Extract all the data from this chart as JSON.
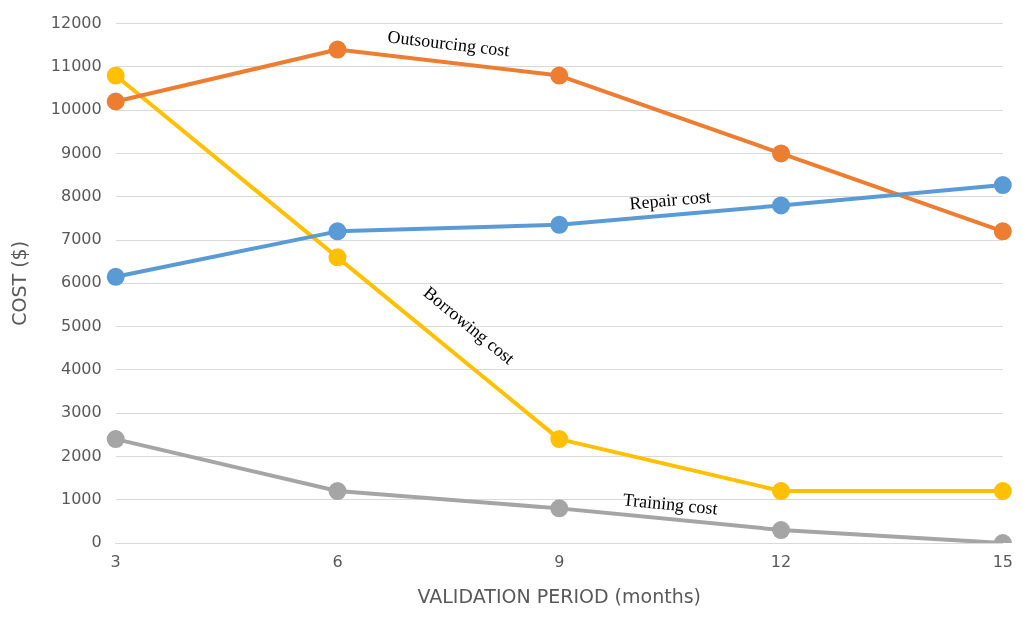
{
  "chart_data": {
    "type": "line",
    "xlabel": "VALIDATION PERIOD (months)",
    "ylabel": "COST ($)",
    "categories": [
      "3",
      "6",
      "9",
      "12",
      "15"
    ],
    "series": [
      {
        "name": "Repair cost",
        "color": "#5b9bd5",
        "values": [
          6150,
          7200,
          7350,
          7800,
          8270
        ]
      },
      {
        "name": "Outsourcing cost",
        "color": "#ed7d31",
        "values": [
          10200,
          11400,
          10800,
          9000,
          7200
        ]
      },
      {
        "name": "Borrowing cost",
        "color": "#ffc000",
        "values": [
          10800,
          6600,
          2400,
          1200,
          1200
        ]
      },
      {
        "name": "Training cost",
        "color": "#a5a5a5",
        "values": [
          2400,
          1200,
          800,
          300,
          0
        ]
      }
    ],
    "ylim": [
      0,
      12000
    ],
    "yticks": [
      0,
      1000,
      2000,
      3000,
      4000,
      5000,
      6000,
      7000,
      8000,
      9000,
      10000,
      11000,
      12000
    ],
    "grid": "y",
    "legend": false,
    "marker": "circle",
    "line_style": "solid"
  }
}
